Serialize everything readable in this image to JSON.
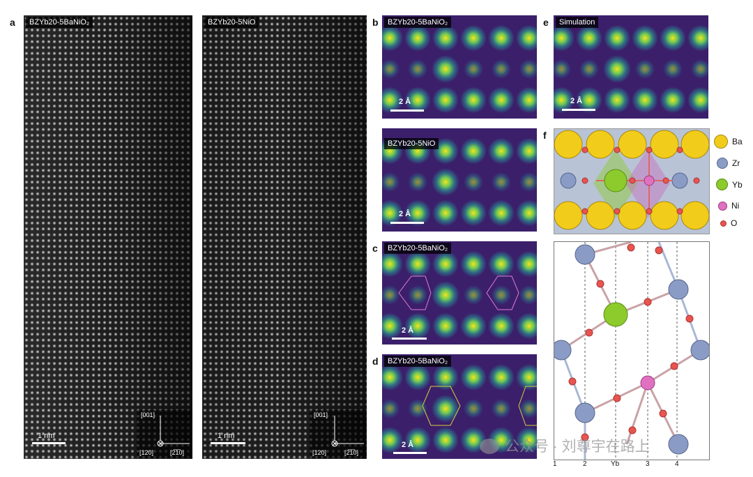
{
  "panels": {
    "a": {
      "letter": "a",
      "left_label": "BZYb20-5BaNiO₂",
      "right_label": "BZYb20-5NiO",
      "scale_bar": "1 nm",
      "axes": {
        "up": "[001]",
        "left": "[120]",
        "right": "[2̅1̅0]"
      }
    },
    "b": {
      "letter": "b",
      "label_top": "BZYb20-5BaNiO₂",
      "label_bottom": "BZYb20-5NiO",
      "scale_bar": "2 Å"
    },
    "c": {
      "letter": "c",
      "label": "BZYb20-5BaNiO₂",
      "scale_bar": "2 Å"
    },
    "d": {
      "letter": "d",
      "label": "BZYb20-5BaNiO₂",
      "scale_bar": "2 Å"
    },
    "e": {
      "letter": "e",
      "label": "Simulation",
      "scale_bar": "2 Å"
    },
    "f": {
      "letter": "f"
    }
  },
  "legend": [
    {
      "symbol": "Ba",
      "color": "#f2cc1a"
    },
    {
      "symbol": "Zr",
      "color": "#8a9cc6"
    },
    {
      "symbol": "Yb",
      "color": "#8ccb2b"
    },
    {
      "symbol": "Ni",
      "color": "#e070c0"
    },
    {
      "symbol": "O",
      "color": "#e8554f"
    }
  ],
  "column_labels": [
    "1",
    "2",
    "Yb",
    "3",
    "4"
  ],
  "watermark": "公众号 · 刘尊宇在路上",
  "colors": {
    "map_dark": "#3b1f6b",
    "map_mid": "#2a8a8f",
    "map_peak": "#f4e61a"
  }
}
